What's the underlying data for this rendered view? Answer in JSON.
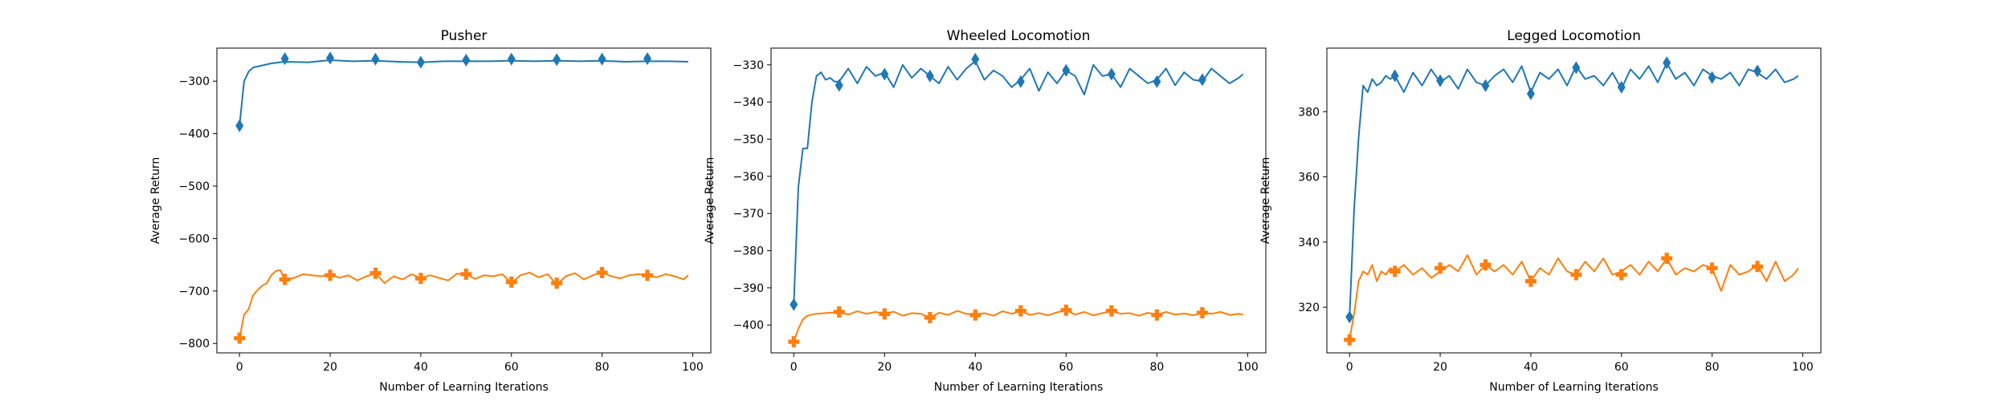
{
  "chart_data": [
    {
      "type": "line",
      "title": "Pusher",
      "xlabel": "Number of Learning Iterations",
      "ylabel": "Average Return",
      "xlim": [
        -5,
        104
      ],
      "ylim": [
        -818,
        -237
      ],
      "xticks": [
        0,
        20,
        40,
        60,
        80,
        100
      ],
      "yticks": [
        -800,
        -700,
        -600,
        -500,
        -400,
        -300
      ],
      "grid": false,
      "series": [
        {
          "color": "#1f77b4",
          "marker": "diamond",
          "x": [
            0,
            1,
            2,
            3,
            4,
            5,
            7,
            10,
            15,
            20,
            25,
            30,
            35,
            40,
            45,
            50,
            55,
            60,
            65,
            70,
            75,
            80,
            85,
            90,
            95,
            99
          ],
          "y": [
            -385,
            -300,
            -282,
            -274,
            -272,
            -270,
            -266,
            -263,
            -264,
            -260,
            -262,
            -261,
            -263,
            -264,
            -262,
            -262,
            -262,
            -261,
            -262,
            -261,
            -262,
            -261,
            -263,
            -262,
            -262,
            -263
          ],
          "marker_x": [
            0,
            10,
            20,
            30,
            40,
            50,
            60,
            70,
            80,
            90
          ],
          "marker_y": [
            -385,
            -257,
            -256,
            -258,
            -264,
            -260,
            -258,
            -259,
            -258,
            -257
          ]
        },
        {
          "color": "#ff7f0e",
          "marker": "plus",
          "x": [
            0,
            1,
            2,
            3,
            4,
            5,
            6,
            7,
            8,
            9,
            10,
            12,
            14,
            16,
            18,
            20,
            22,
            24,
            26,
            28,
            30,
            32,
            34,
            36,
            38,
            40,
            42,
            44,
            46,
            48,
            50,
            52,
            54,
            56,
            58,
            60,
            62,
            64,
            66,
            68,
            70,
            72,
            74,
            76,
            78,
            80,
            82,
            84,
            86,
            88,
            90,
            92,
            94,
            96,
            98,
            99
          ],
          "y": [
            -790,
            -745,
            -735,
            -708,
            -698,
            -690,
            -685,
            -670,
            -662,
            -660,
            -680,
            -675,
            -668,
            -670,
            -672,
            -668,
            -675,
            -670,
            -680,
            -672,
            -666,
            -685,
            -672,
            -678,
            -668,
            -676,
            -670,
            -675,
            -680,
            -667,
            -668,
            -677,
            -670,
            -672,
            -668,
            -685,
            -670,
            -665,
            -674,
            -668,
            -688,
            -672,
            -666,
            -678,
            -670,
            -664,
            -672,
            -676,
            -670,
            -668,
            -670,
            -674,
            -668,
            -672,
            -678,
            -670
          ],
          "marker_x": [
            0,
            10,
            20,
            30,
            40,
            50,
            60,
            70,
            80,
            90
          ],
          "marker_y": [
            -790,
            -678,
            -670,
            -666,
            -676,
            -668,
            -683,
            -685,
            -665,
            -670
          ]
        }
      ]
    },
    {
      "type": "line",
      "title": "Wheeled Locomotion",
      "xlabel": "Number of Learning Iterations",
      "ylabel": "Average Return",
      "xlim": [
        -5,
        104
      ],
      "ylim": [
        -407.5,
        -325.5
      ],
      "xticks": [
        0,
        20,
        40,
        60,
        80,
        100
      ],
      "yticks": [
        -400,
        -390,
        -380,
        -370,
        -360,
        -350,
        -340,
        -330
      ],
      "grid": false,
      "series": [
        {
          "color": "#1f77b4",
          "marker": "diamond",
          "x": [
            0,
            1,
            2,
            3,
            4,
            5,
            6,
            7,
            8,
            9,
            10,
            12,
            14,
            16,
            18,
            20,
            22,
            24,
            26,
            28,
            30,
            32,
            34,
            36,
            38,
            40,
            42,
            44,
            46,
            48,
            50,
            52,
            54,
            56,
            58,
            60,
            62,
            64,
            66,
            68,
            70,
            72,
            74,
            76,
            78,
            80,
            82,
            84,
            86,
            88,
            90,
            92,
            94,
            96,
            98,
            99
          ],
          "y": [
            -394.5,
            -363,
            -352.5,
            -352.5,
            -340,
            -333,
            -332,
            -334,
            -333.5,
            -334.5,
            -334.5,
            -331,
            -335,
            -330.5,
            -333,
            -332,
            -336,
            -330,
            -333.5,
            -331,
            -333,
            -335,
            -330.5,
            -334,
            -331,
            -329,
            -334,
            -331.5,
            -333,
            -336,
            -334,
            -331,
            -337,
            -332,
            -335,
            -331.5,
            -333,
            -338,
            -330,
            -333,
            -332.5,
            -336,
            -331,
            -333,
            -335,
            -334,
            -331,
            -335.5,
            -332,
            -334,
            -334.5,
            -331,
            -333,
            -335,
            -333.5,
            -332.5
          ],
          "marker_x": [
            0,
            10,
            20,
            30,
            40,
            50,
            60,
            70,
            80,
            90
          ],
          "marker_y": [
            -394.5,
            -335.5,
            -332.5,
            -333,
            -328.5,
            -334.5,
            -331.5,
            -332.5,
            -334.5,
            -334
          ]
        },
        {
          "color": "#ff7f0e",
          "marker": "plus",
          "x": [
            0,
            1,
            2,
            3,
            4,
            5,
            7,
            10,
            12,
            14,
            16,
            18,
            20,
            22,
            24,
            26,
            28,
            30,
            32,
            34,
            36,
            38,
            40,
            42,
            44,
            46,
            48,
            50,
            52,
            54,
            56,
            58,
            60,
            62,
            64,
            66,
            68,
            70,
            72,
            74,
            76,
            78,
            80,
            82,
            84,
            86,
            88,
            90,
            92,
            94,
            96,
            98,
            99
          ],
          "y": [
            -404.5,
            -401,
            -398.5,
            -397.5,
            -397.2,
            -397,
            -396.8,
            -396.5,
            -397.2,
            -396.3,
            -397,
            -396.5,
            -397,
            -396.4,
            -397.5,
            -396.8,
            -397,
            -398,
            -396.7,
            -397.3,
            -396.2,
            -397,
            -397.3,
            -396.8,
            -397.5,
            -396.3,
            -397,
            -396.2,
            -397.3,
            -396.8,
            -397.4,
            -396.6,
            -396,
            -397.2,
            -396.5,
            -397.4,
            -396.8,
            -396.2,
            -397,
            -396.8,
            -397.5,
            -396.7,
            -397.3,
            -396.5,
            -397.2,
            -396.9,
            -397.4,
            -396.7,
            -397,
            -396.5,
            -397.3,
            -397,
            -397.2
          ],
          "marker_x": [
            0,
            10,
            20,
            30,
            40,
            50,
            60,
            70,
            80,
            90
          ],
          "marker_y": [
            -404.5,
            -396.5,
            -397,
            -398,
            -397.3,
            -396.2,
            -396,
            -396.2,
            -397.3,
            -396.7
          ]
        }
      ]
    },
    {
      "type": "line",
      "title": "Legged Locomotion",
      "xlabel": "Number of Learning Iterations",
      "ylabel": "Average Return",
      "xlim": [
        -5,
        104
      ],
      "ylim": [
        306,
        399.5
      ],
      "xticks": [
        0,
        20,
        40,
        60,
        80,
        100
      ],
      "yticks": [
        320,
        340,
        360,
        380
      ],
      "grid": false,
      "series": [
        {
          "color": "#1f77b4",
          "marker": "diamond",
          "x": [
            0,
            1,
            2,
            3,
            4,
            5,
            6,
            7,
            8,
            9,
            10,
            12,
            14,
            16,
            18,
            20,
            22,
            24,
            26,
            28,
            30,
            32,
            34,
            36,
            38,
            40,
            42,
            44,
            46,
            48,
            50,
            52,
            54,
            56,
            58,
            60,
            62,
            64,
            66,
            68,
            70,
            72,
            74,
            76,
            78,
            80,
            82,
            84,
            86,
            88,
            90,
            92,
            94,
            96,
            98,
            99
          ],
          "y": [
            317,
            350,
            372,
            388,
            386,
            390,
            388,
            389,
            391,
            390,
            391,
            386,
            392,
            388,
            393,
            389,
            391,
            387,
            393,
            389,
            388,
            391,
            393,
            389,
            394,
            386,
            392,
            390,
            393,
            388,
            394,
            390,
            391,
            388,
            392,
            387,
            393,
            390,
            394,
            389,
            395,
            390,
            392,
            388,
            393,
            391,
            390,
            392,
            388,
            393,
            392,
            390,
            393,
            389,
            390,
            391
          ],
          "marker_x": [
            0,
            10,
            20,
            30,
            40,
            50,
            60,
            70,
            80,
            90
          ],
          "marker_y": [
            317,
            391,
            389.5,
            388,
            385.5,
            393.5,
            387.5,
            395,
            390.5,
            392.5
          ]
        },
        {
          "color": "#ff7f0e",
          "marker": "plus",
          "x": [
            0,
            1,
            2,
            3,
            4,
            5,
            6,
            7,
            8,
            9,
            10,
            12,
            14,
            16,
            18,
            20,
            22,
            24,
            26,
            28,
            30,
            32,
            34,
            36,
            38,
            40,
            42,
            44,
            46,
            48,
            50,
            52,
            54,
            56,
            58,
            60,
            62,
            64,
            66,
            68,
            70,
            72,
            74,
            76,
            78,
            80,
            82,
            84,
            86,
            88,
            90,
            92,
            94,
            96,
            98,
            99
          ],
          "y": [
            310,
            318,
            328,
            331,
            330,
            333,
            328,
            331,
            330,
            332,
            331,
            333,
            330,
            332,
            329,
            331,
            333,
            331,
            336,
            330,
            333,
            331,
            333,
            330,
            334,
            328,
            332,
            330,
            335,
            331,
            330,
            334,
            331,
            335,
            330,
            331,
            333,
            330,
            334,
            331,
            335,
            330,
            332,
            331,
            333,
            332,
            325,
            333,
            330,
            331,
            333,
            328,
            334,
            328,
            330,
            332
          ],
          "marker_x": [
            0,
            10,
            20,
            30,
            40,
            50,
            60,
            70,
            80,
            90
          ],
          "marker_y": [
            310,
            331,
            332,
            333,
            328,
            330,
            330,
            335,
            332,
            332.5
          ]
        }
      ]
    }
  ]
}
